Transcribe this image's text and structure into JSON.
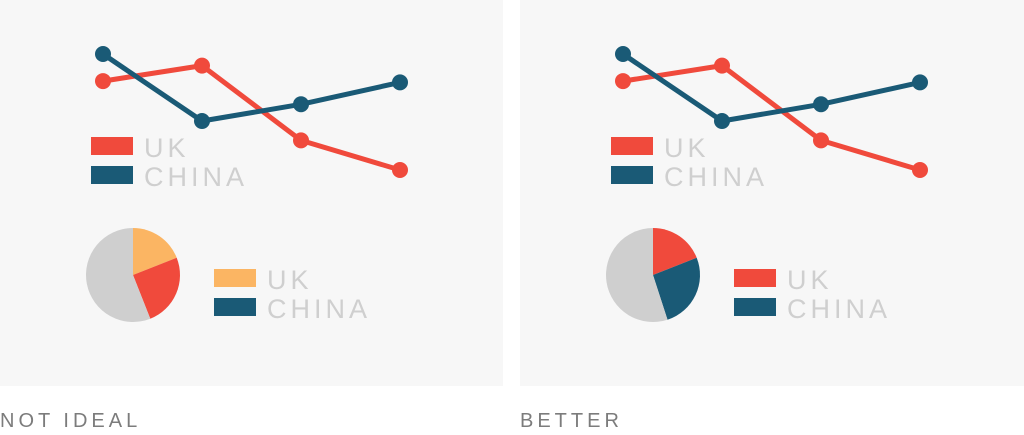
{
  "colors": {
    "red": "#f04a3c",
    "navy": "#1a5a76",
    "orange": "#fbb563",
    "gray": "#cfcfcf",
    "panel_bg": "#f7f7f7",
    "caption": "#7c7c7c"
  },
  "panels": [
    {
      "caption": "NOT IDEAL",
      "chart_data": [
        {
          "type": "line",
          "x": [
            1,
            2,
            3,
            4
          ],
          "series": [
            {
              "name": "UK",
              "values": [
                7.9,
                9.1,
                3.3,
                1.0
              ],
              "color": "#f04a3c"
            },
            {
              "name": "CHINA",
              "values": [
                10.0,
                4.8,
                6.1,
                7.8
              ],
              "color": "#1a5a76"
            }
          ],
          "legend": [
            {
              "label": "UK",
              "color": "#f04a3c"
            },
            {
              "label": "CHINA",
              "color": "#1a5a76"
            }
          ],
          "grid": false,
          "legend_position": "bottom-left"
        },
        {
          "type": "pie",
          "slices": [
            {
              "label": "UK",
              "value": 19,
              "color": "#fbb563"
            },
            {
              "label": "",
              "value": 25,
              "color": "#f04a3c"
            },
            {
              "label": "",
              "value": 56,
              "color": "#cfcfcf"
            }
          ],
          "legend": [
            {
              "label": "UK",
              "color": "#fbb563"
            },
            {
              "label": "CHINA",
              "color": "#1a5a76"
            }
          ],
          "legend_position": "right"
        }
      ]
    },
    {
      "caption": "BETTER",
      "chart_data": [
        {
          "type": "line",
          "x": [
            1,
            2,
            3,
            4
          ],
          "series": [
            {
              "name": "UK",
              "values": [
                7.9,
                9.1,
                3.3,
                1.0
              ],
              "color": "#f04a3c"
            },
            {
              "name": "CHINA",
              "values": [
                10.0,
                4.8,
                6.1,
                7.8
              ],
              "color": "#1a5a76"
            }
          ],
          "legend": [
            {
              "label": "UK",
              "color": "#f04a3c"
            },
            {
              "label": "CHINA",
              "color": "#1a5a76"
            }
          ],
          "grid": false,
          "legend_position": "bottom-left"
        },
        {
          "type": "pie",
          "slices": [
            {
              "label": "UK",
              "value": 19,
              "color": "#f04a3c"
            },
            {
              "label": "CHINA",
              "value": 26,
              "color": "#1a5a76"
            },
            {
              "label": "",
              "value": 55,
              "color": "#cfcfcf"
            }
          ],
          "legend": [
            {
              "label": "UK",
              "color": "#f04a3c"
            },
            {
              "label": "CHINA",
              "color": "#1a5a76"
            }
          ],
          "legend_position": "right"
        }
      ]
    }
  ]
}
